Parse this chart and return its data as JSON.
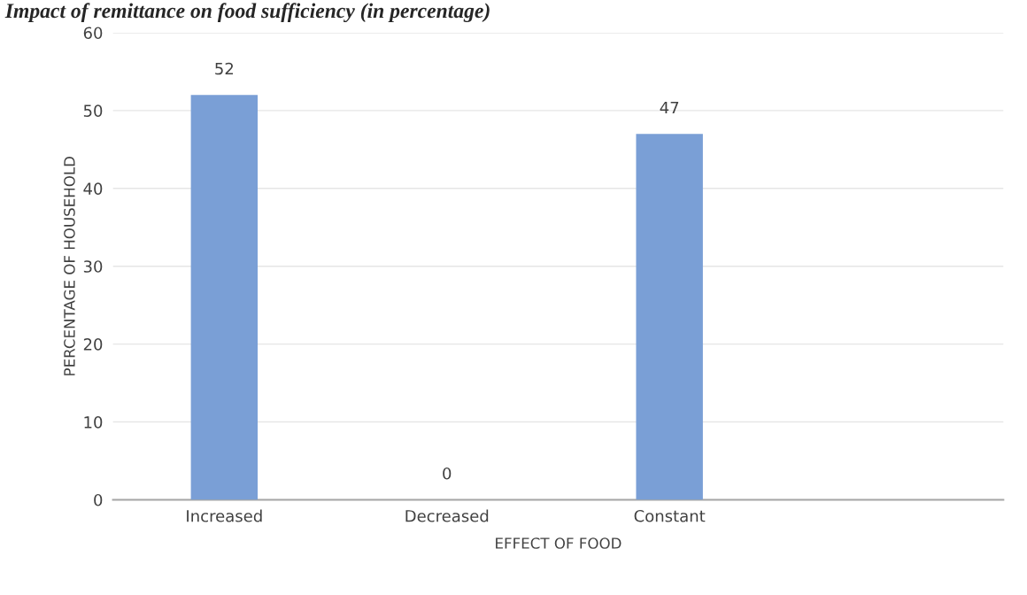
{
  "chart_data": {
    "type": "bar",
    "title": "Impact of remittance on food sufficiency (in percentage)",
    "xlabel": "EFFECT OF FOOD",
    "ylabel": "PERCENTAGE OF HOUSEHOLD",
    "categories": [
      "Increased",
      "Decreased",
      "Constant",
      null
    ],
    "values": [
      52,
      0,
      47,
      null
    ],
    "color": "#7a9fd6",
    "ylim": [
      0,
      60
    ],
    "yticks": [
      0,
      10,
      20,
      30,
      40,
      50,
      60
    ],
    "grid": "y",
    "data_labels": true,
    "legend": false
  }
}
